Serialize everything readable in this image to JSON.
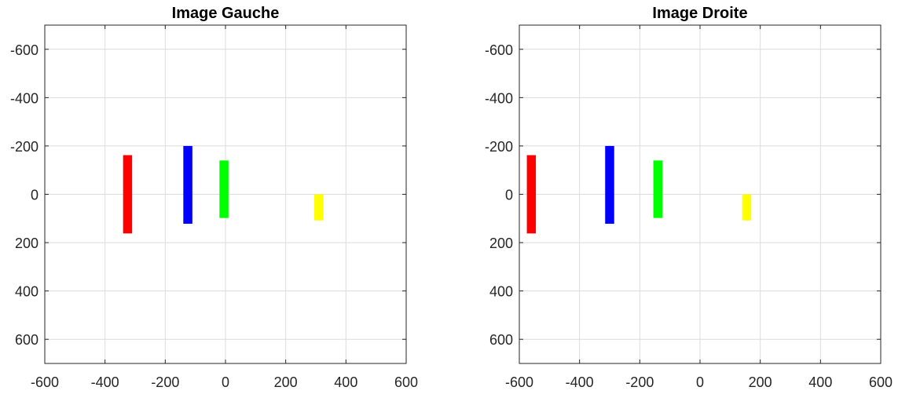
{
  "chart_data": [
    {
      "type": "bar",
      "title": "Image Gauche",
      "xlabel": "",
      "ylabel": "",
      "xlim": [
        -600,
        600
      ],
      "ylim": [
        -700,
        700
      ],
      "y_reversed": true,
      "grid": true,
      "xticks": [
        -600,
        -400,
        -200,
        0,
        200,
        400,
        600
      ],
      "yticks": [
        -600,
        -400,
        -200,
        0,
        200,
        400,
        600
      ],
      "bars": [
        {
          "color": "#ff0000",
          "x": [
            -340,
            -310
          ],
          "y": [
            -162,
            162
          ]
        },
        {
          "color": "#0000ff",
          "x": [
            -140,
            -110
          ],
          "y": [
            -200,
            122
          ]
        },
        {
          "color": "#00ff00",
          "x": [
            -20,
            10
          ],
          "y": [
            -140,
            98
          ]
        },
        {
          "color": "#ffff00",
          "x": [
            295,
            325
          ],
          "y": [
            0,
            108
          ]
        }
      ]
    },
    {
      "type": "bar",
      "title": "Image Droite",
      "xlabel": "",
      "ylabel": "",
      "xlim": [
        -600,
        600
      ],
      "ylim": [
        -700,
        700
      ],
      "y_reversed": true,
      "grid": true,
      "xticks": [
        -600,
        -400,
        -200,
        0,
        200,
        400,
        600
      ],
      "yticks": [
        -600,
        -400,
        -200,
        0,
        200,
        400,
        600
      ],
      "bars": [
        {
          "color": "#ff0000",
          "x": [
            -575,
            -545
          ],
          "y": [
            -162,
            162
          ]
        },
        {
          "color": "#0000ff",
          "x": [
            -315,
            -285
          ],
          "y": [
            -200,
            122
          ]
        },
        {
          "color": "#00ff00",
          "x": [
            -155,
            -125
          ],
          "y": [
            -140,
            98
          ]
        },
        {
          "color": "#ffff00",
          "x": [
            140,
            170
          ],
          "y": [
            0,
            108
          ]
        }
      ]
    }
  ]
}
